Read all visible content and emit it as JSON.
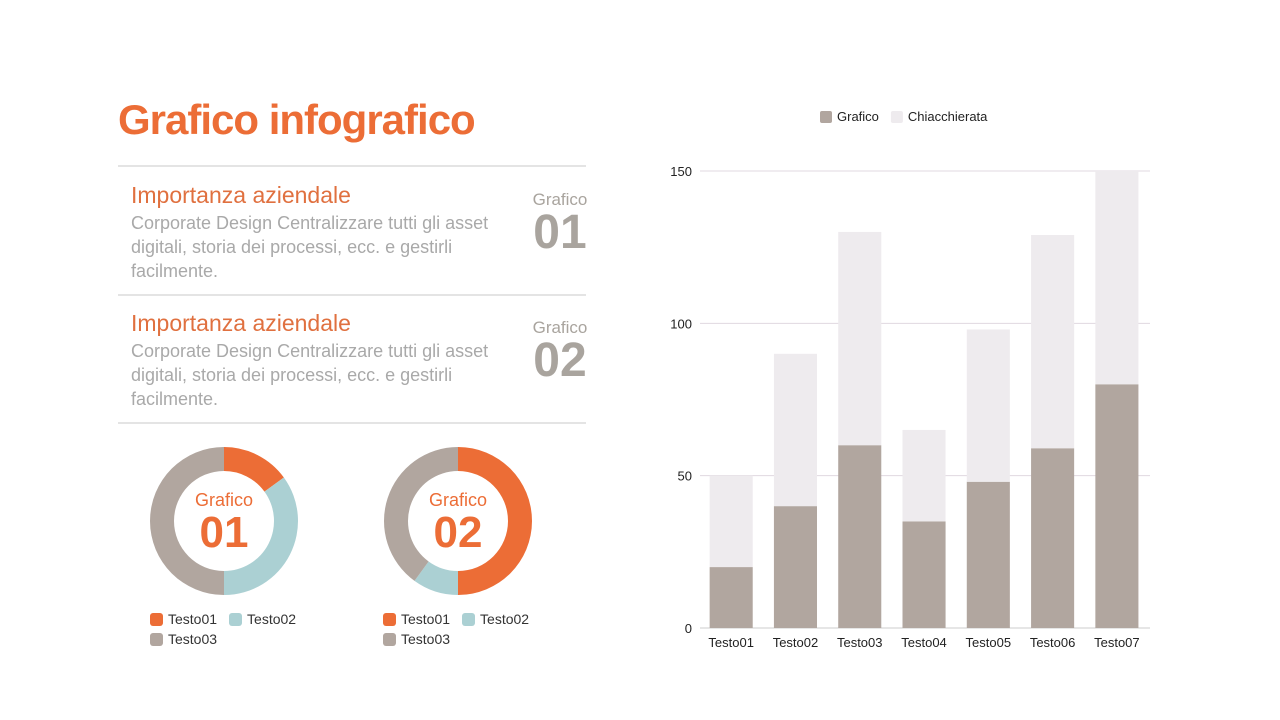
{
  "title": "Grafico infografico",
  "sections": [
    {
      "heading": "Importanza aziendale",
      "body": "Corporate Design Centralizzare tutti gli asset digitali, storia dei processi, ecc. e gestirli facilmente.",
      "badge_label": "Grafico",
      "badge_number": "01"
    },
    {
      "heading": "Importanza aziendale",
      "body": "Corporate Design Centralizzare tutti gli asset digitali, storia dei processi, ecc. e gestirli facilmente.",
      "badge_label": "Grafico",
      "badge_number": "02"
    }
  ],
  "colors": {
    "orange": "#ec6d36",
    "blue": "#abd0d3",
    "gray": "#b1a69f",
    "light": "#eeebee"
  },
  "donuts": [
    {
      "label": "Grafico",
      "number": "01",
      "values": [
        15,
        35,
        50
      ],
      "legend": [
        "Testo01",
        "Testo02",
        "Testo03"
      ]
    },
    {
      "label": "Grafico",
      "number": "02",
      "values": [
        50,
        10,
        40
      ],
      "legend": [
        "Testo01",
        "Testo02",
        "Testo03"
      ]
    }
  ],
  "chart_data": {
    "type": "bar",
    "stacked": true,
    "categories": [
      "Testo01",
      "Testo02",
      "Testo03",
      "Testo04",
      "Testo05",
      "Testo06",
      "Testo07"
    ],
    "series": [
      {
        "name": "Grafico",
        "values": [
          20,
          40,
          60,
          35,
          48,
          59,
          80
        ]
      },
      {
        "name": "Chiacchierata",
        "values": [
          30,
          50,
          70,
          30,
          50,
          70,
          70
        ]
      }
    ],
    "ylim": [
      0,
      150
    ],
    "yticks": [
      0,
      50,
      100,
      150
    ],
    "legend": "top",
    "grid": true
  }
}
